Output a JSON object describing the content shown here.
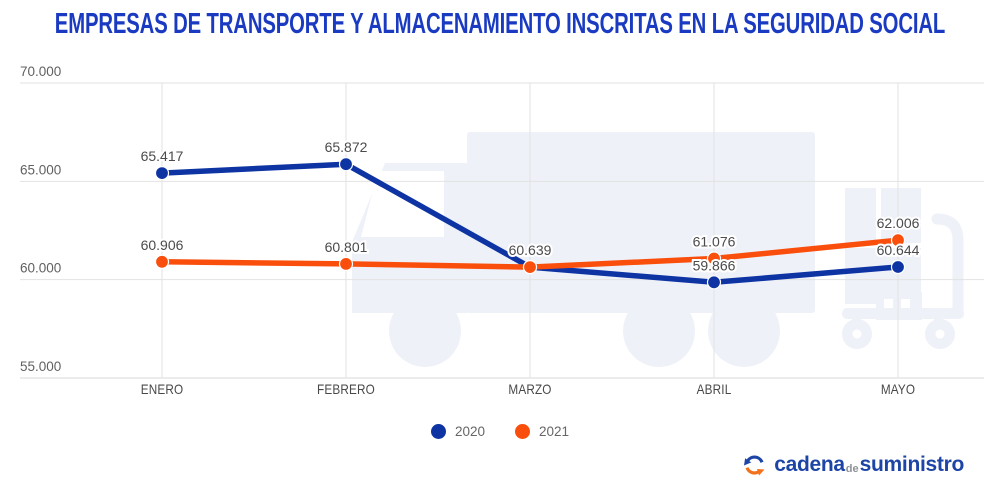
{
  "title": "EMPRESAS DE TRANSPORTE Y ALMACENAMIENTO INSCRITAS EN LA SEGURIDAD SOCIAL",
  "colors": {
    "title": "#1A3BC1",
    "series_2020": "#0E34A4",
    "series_2021": "#FA4F0C",
    "grid": "#E2E2E2",
    "axis_line": "#D8D8D8",
    "axis_text": "#616161",
    "month_text": "#484848",
    "data_label": "#4B4B4B",
    "watermark": "#EEF1F8",
    "legend_text": "#666666",
    "logo_blue": "#1C45A6",
    "logo_orange": "#F2711C",
    "logo_gray": "#8E9196"
  },
  "chart_data": {
    "type": "line",
    "title": "EMPRESAS DE TRANSPORTE Y ALMACENAMIENTO INSCRITAS EN LA SEGURIDAD SOCIAL",
    "categories": [
      "ENERO",
      "FEBRERO",
      "MARZO",
      "ABRIL",
      "MAYO"
    ],
    "series": [
      {
        "name": "2020",
        "color": "#0E34A4",
        "values": [
          65417,
          65872,
          60639,
          59866,
          60644
        ],
        "point_labels": [
          "65.417",
          "65.872",
          "",
          "59.866",
          "60.644"
        ]
      },
      {
        "name": "2021",
        "color": "#FA4F0C",
        "values": [
          60906,
          60801,
          60639,
          61076,
          62006
        ],
        "point_labels": [
          "60.906",
          "60.801",
          "60.639",
          "61.076",
          "62.006"
        ]
      }
    ],
    "ylim": [
      55000,
      70000
    ],
    "y_ticks": [
      {
        "value": 70000,
        "label": "70.000"
      },
      {
        "value": 65000,
        "label": "65.000"
      },
      {
        "value": 60000,
        "label": "60.000"
      },
      {
        "value": 55000,
        "label": "55.000"
      }
    ],
    "grid": true,
    "legend_position": "bottom"
  },
  "legend": {
    "items": [
      {
        "label": "2020",
        "color": "#0E34A4"
      },
      {
        "label": "2021",
        "color": "#FA4F0C"
      }
    ]
  },
  "footer": {
    "logo": {
      "word1": "cadena",
      "word2": "de",
      "word3": "suministro"
    }
  }
}
